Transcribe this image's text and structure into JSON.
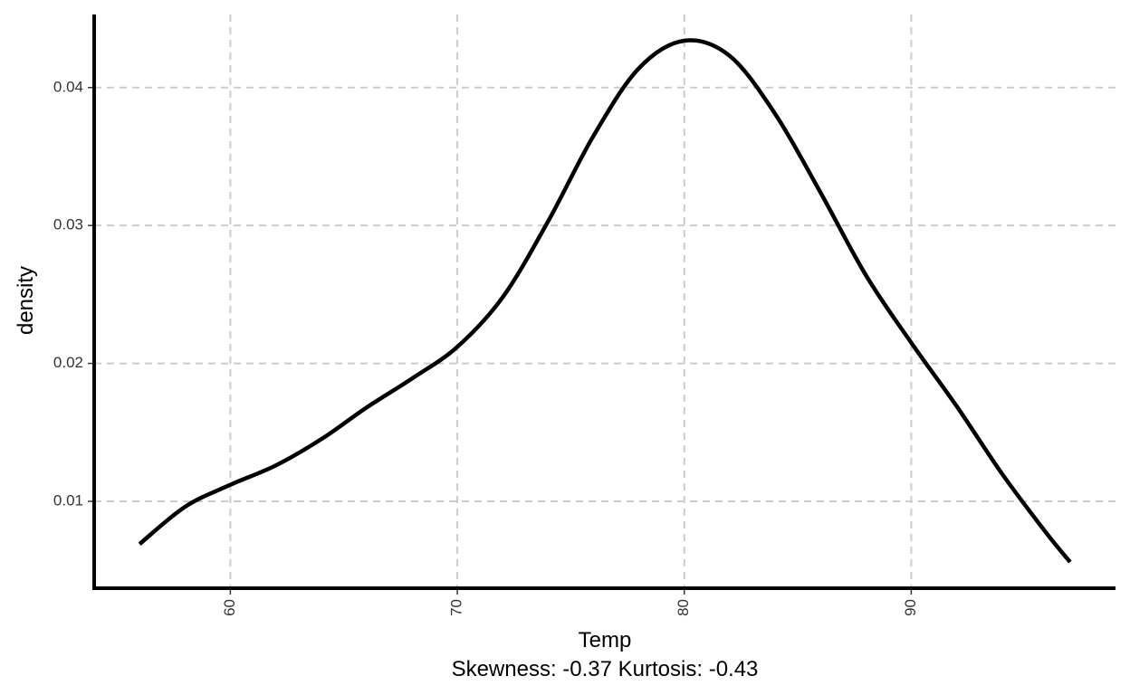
{
  "chart_data": {
    "type": "line",
    "xlabel": "Temp",
    "ylabel": "density",
    "subtitle": "Skewness: -0.37 Kurtosis: -0.43",
    "xlim": [
      54,
      99
    ],
    "ylim": [
      0.0037,
      0.0453
    ],
    "x_ticks": [
      60,
      70,
      80,
      90
    ],
    "x_tick_labels": [
      "60",
      "70",
      "80",
      "90"
    ],
    "y_ticks": [
      0.01,
      0.02,
      0.03,
      0.04
    ],
    "y_tick_labels": [
      "0.01",
      "0.02",
      "0.03",
      "0.04"
    ],
    "grid": true,
    "series": [
      {
        "color": "#000000",
        "x": [
          56,
          58,
          60,
          62,
          64,
          66,
          68,
          70,
          72,
          74,
          76,
          78,
          80,
          82,
          84,
          86,
          88,
          90,
          92,
          94,
          96,
          97
        ],
        "y": [
          0.0069,
          0.0096,
          0.0112,
          0.0126,
          0.0145,
          0.0168,
          0.0189,
          0.0212,
          0.0248,
          0.0303,
          0.0365,
          0.0414,
          0.0434,
          0.0423,
          0.0381,
          0.0324,
          0.0264,
          0.0215,
          0.0169,
          0.012,
          0.0076,
          0.0056
        ]
      }
    ]
  }
}
